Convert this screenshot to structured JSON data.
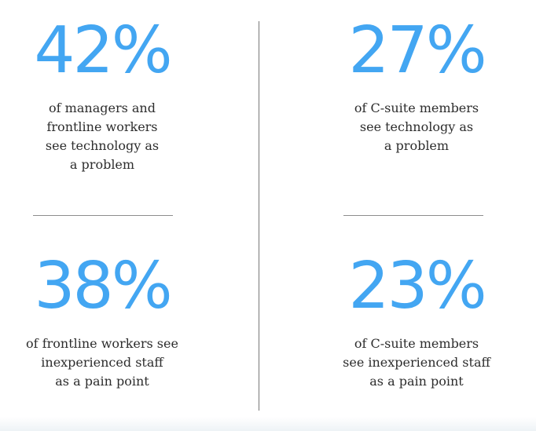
{
  "stats": [
    {
      "value": "42%",
      "description": "of managers and\nfrontline workers\nsee technology as\na problem"
    },
    {
      "value": "27%",
      "description": "of C-suite members\nsee technology as\na problem"
    },
    {
      "value": "38%",
      "description": "of frontline workers see\ninexperienced staff\nas a pain point"
    },
    {
      "value": "23%",
      "description": "of C-suite members\nsee inexperienced staff\nas a pain point"
    }
  ],
  "colors": {
    "accent": "#43a6f2",
    "text": "#2d2d2d",
    "divider": "#8d8d8d"
  }
}
